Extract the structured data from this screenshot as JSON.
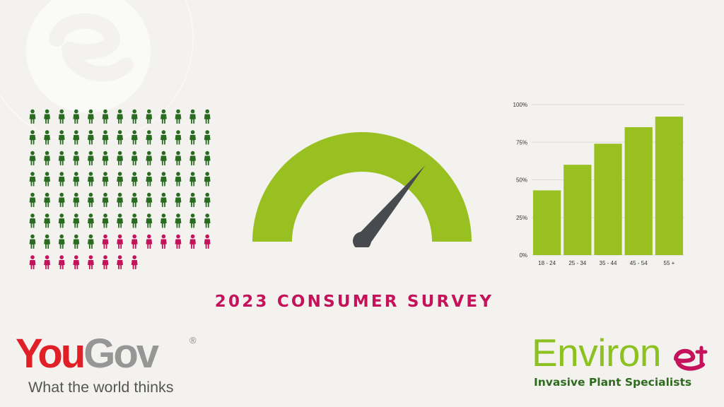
{
  "title": "2023 CONSUMER SURVEY",
  "people_grid": {
    "columns": 13,
    "total_icons": 99,
    "green_count": 83,
    "pink_count": 16,
    "colors": {
      "green": "#2a6b22",
      "pink": "#c4135a"
    }
  },
  "gauge": {
    "level": 0.72,
    "colors": {
      "arc": "#99c021",
      "needle": "#474a4f"
    }
  },
  "chart_data": {
    "type": "bar",
    "categories": [
      "18 - 24",
      "25 - 34",
      "35 - 44",
      "45 - 54",
      "55 +"
    ],
    "values": [
      43,
      60,
      74,
      85,
      92
    ],
    "yticks": [
      "0%",
      "25%",
      "50%",
      "75%",
      "100%"
    ],
    "ylim": [
      0,
      100
    ],
    "grid": true,
    "color": "#99c021"
  },
  "yougov": {
    "brand_part1": "You",
    "brand_part2": "Gov",
    "registered": "®",
    "tagline": "What the world thinks",
    "colors": {
      "red": "#e01f26",
      "grey": "#969696"
    }
  },
  "environet": {
    "brand": "Environ",
    "tagline": "Invasive Plant Specialists",
    "colors": {
      "green": "#8dc121",
      "pink": "#c4135a",
      "dark_green": "#2e6b1e"
    }
  },
  "watermark_icon": "environet-e-icon"
}
